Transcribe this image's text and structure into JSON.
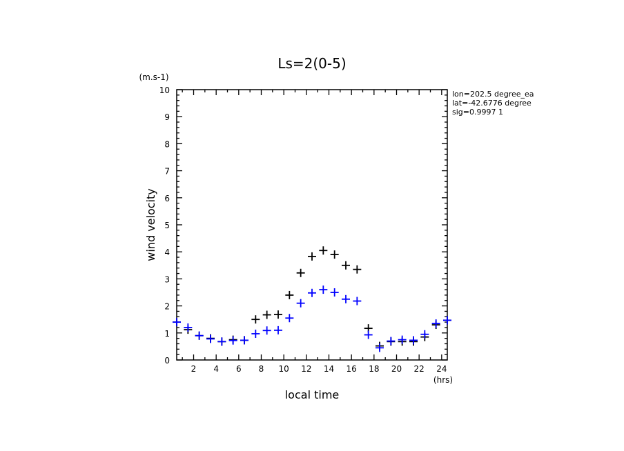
{
  "chart_data": {
    "type": "scatter",
    "title": "Ls=2(0-5)",
    "xlabel": "local time",
    "xunit": "(hrs)",
    "ylabel": "wind velocity",
    "yunit": "(m.s-1)",
    "xlim": [
      0.5,
      24.5
    ],
    "ylim": [
      0,
      10
    ],
    "xticks": [
      2,
      4,
      6,
      8,
      10,
      12,
      14,
      16,
      18,
      20,
      22,
      24
    ],
    "yticks": [
      0,
      1,
      2,
      3,
      4,
      5,
      6,
      7,
      8,
      9,
      10
    ],
    "grid": false,
    "info": [
      "lon=202.5 degree_ea",
      "lat=-42.6776 degree",
      "sig=0.9997 1"
    ],
    "x": [
      0.5,
      1.5,
      2.5,
      3.5,
      4.5,
      5.5,
      6.5,
      7.5,
      8.5,
      9.5,
      10.5,
      11.5,
      12.5,
      13.5,
      14.5,
      15.5,
      16.5,
      17.5,
      18.5,
      19.5,
      20.5,
      21.5,
      22.5,
      23.5,
      24.5
    ],
    "series": [
      {
        "color": "#000000",
        "values": [
          1.4,
          1.12,
          0.9,
          0.8,
          0.68,
          0.75,
          0.73,
          1.5,
          1.67,
          1.68,
          2.4,
          3.22,
          3.83,
          4.05,
          3.9,
          3.5,
          3.35,
          1.17,
          0.52,
          0.68,
          0.68,
          0.68,
          0.85,
          1.3,
          1.47
        ]
      },
      {
        "color": "#0000ff",
        "values": [
          1.4,
          1.2,
          0.9,
          0.78,
          0.68,
          0.72,
          0.73,
          0.97,
          1.09,
          1.1,
          1.55,
          2.1,
          2.48,
          2.6,
          2.5,
          2.25,
          2.18,
          0.93,
          0.45,
          0.7,
          0.75,
          0.73,
          0.95,
          1.35,
          1.47
        ]
      }
    ]
  }
}
